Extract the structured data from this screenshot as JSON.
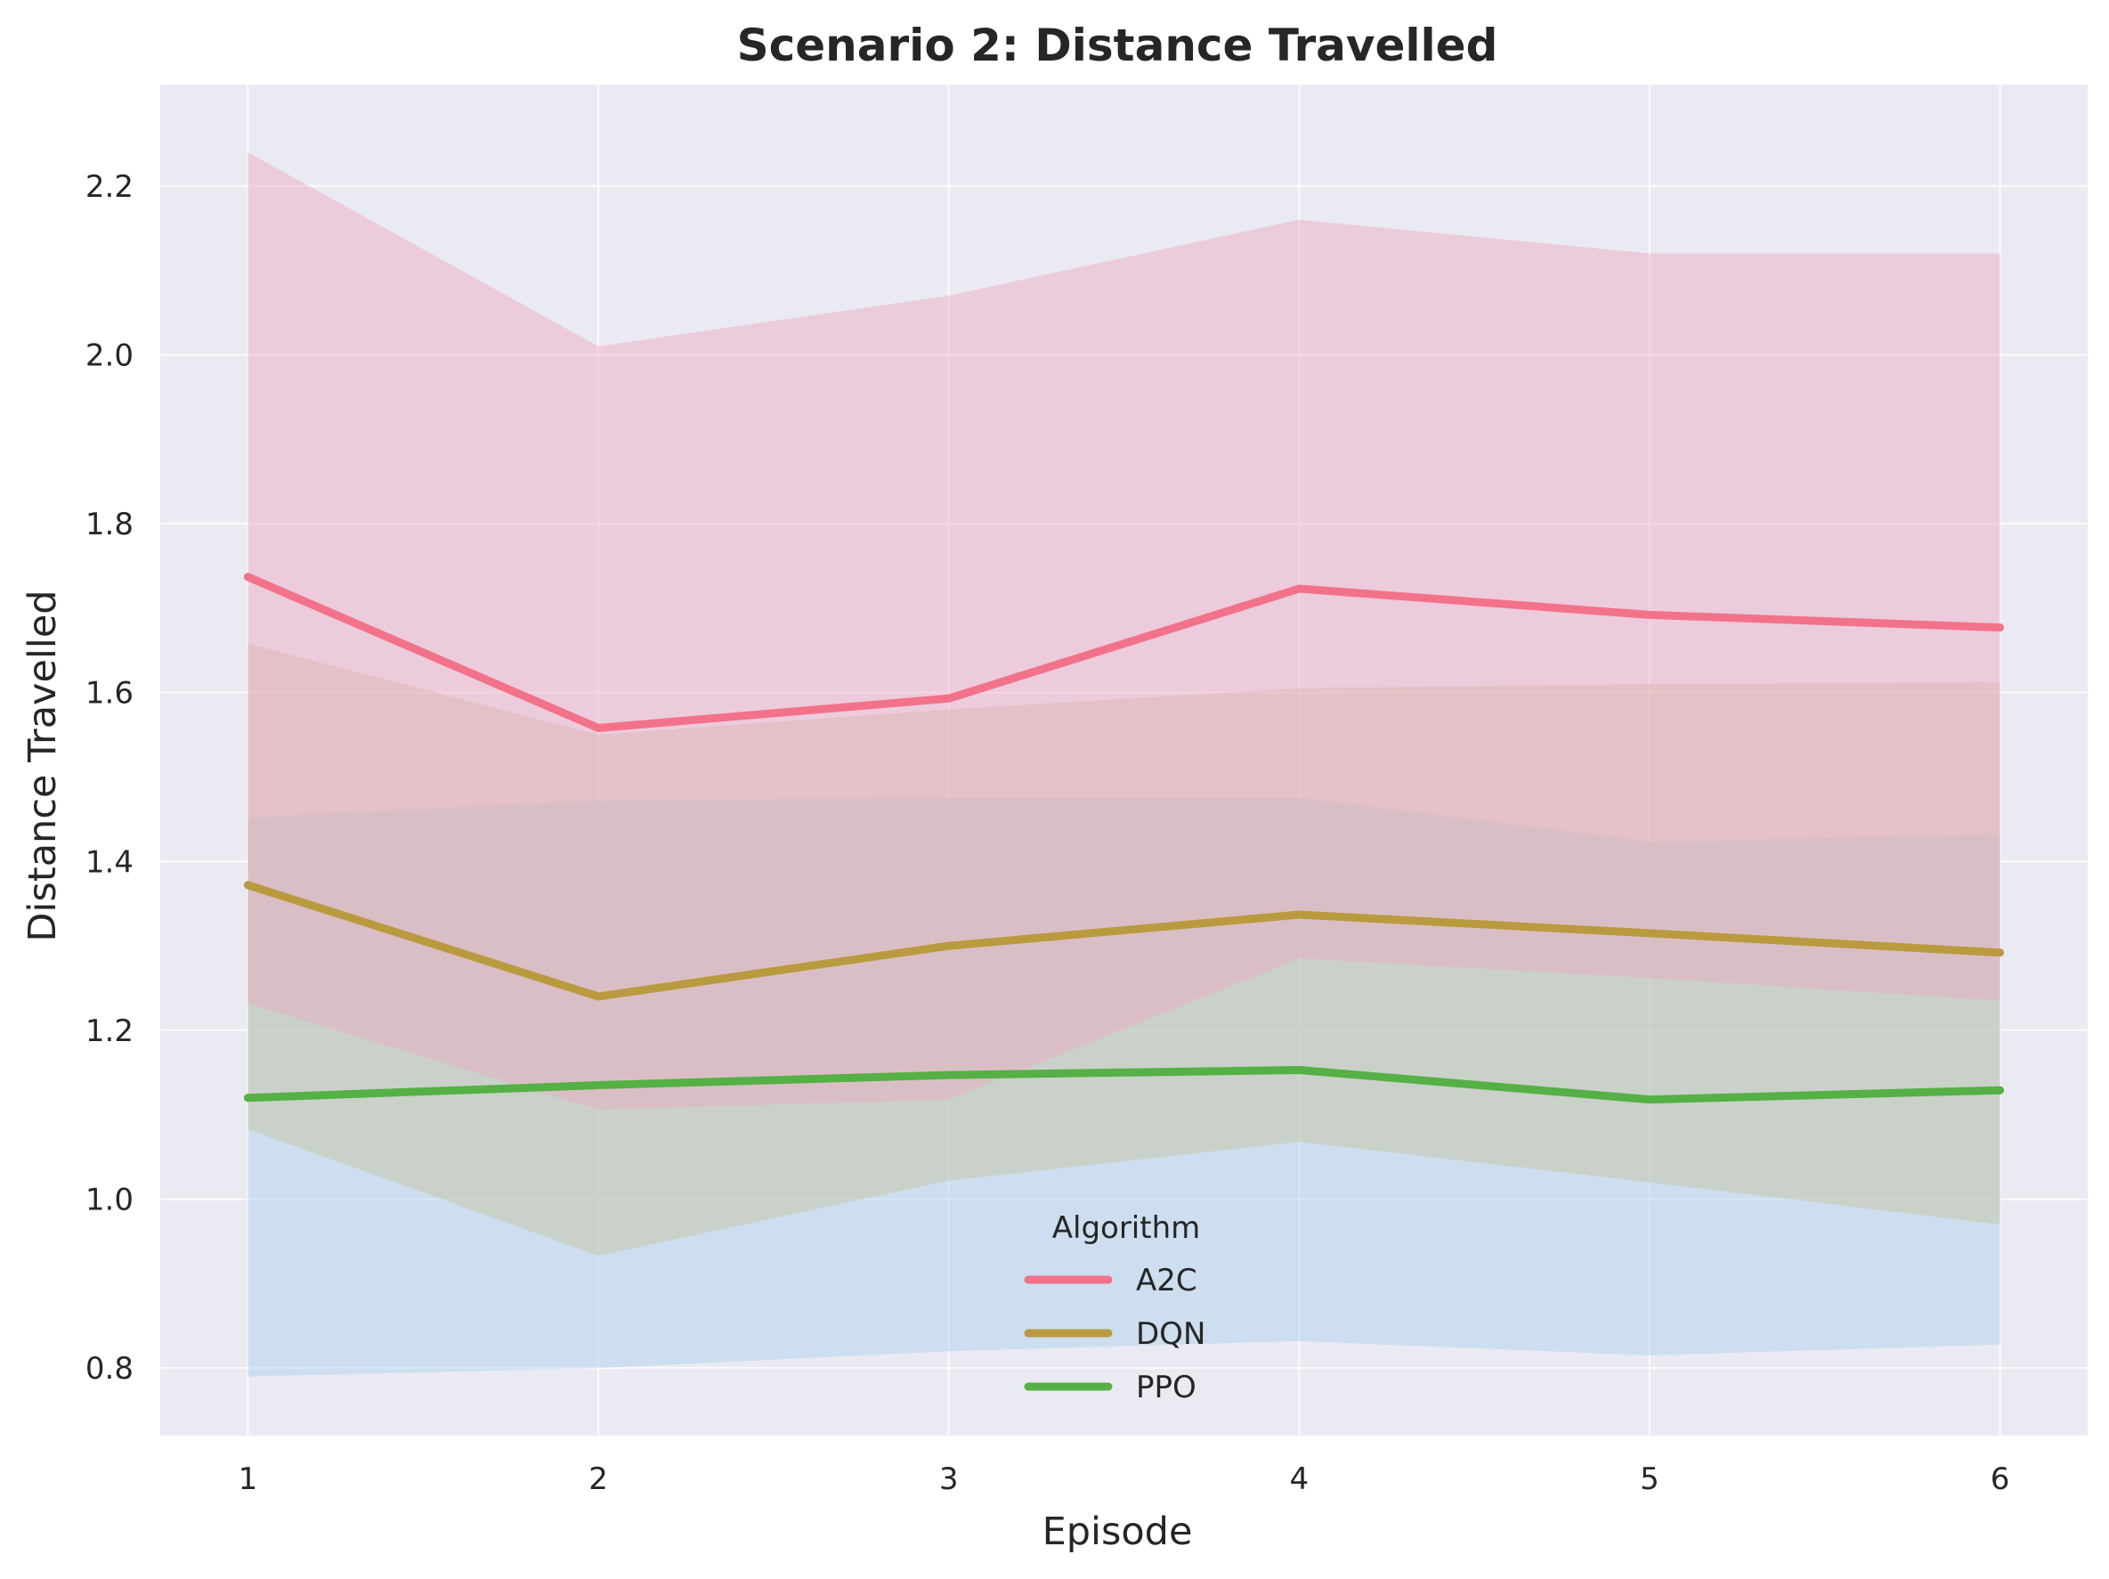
{
  "chart_data": {
    "type": "line",
    "title": "Scenario 2: Distance Travelled",
    "xlabel": "Episode",
    "ylabel": "Distance Travelled",
    "x": [
      1,
      2,
      3,
      4,
      5,
      6
    ],
    "xlim": [
      0.75,
      6.25
    ],
    "ylim": [
      0.72,
      2.32
    ],
    "yticks": [
      0.8,
      1.0,
      1.2,
      1.4,
      1.6,
      1.8,
      2.0,
      2.2
    ],
    "ytick_labels": [
      "0.8",
      "1.0",
      "1.2",
      "1.4",
      "1.6",
      "1.8",
      "2.0",
      "2.2"
    ],
    "xtick_labels": [
      "1",
      "2",
      "3",
      "4",
      "5",
      "6"
    ],
    "grid": true,
    "background": "#eaeaf2",
    "legend": {
      "title": "Algorithm",
      "placement": "lower-center"
    },
    "series": [
      {
        "name": "A2C",
        "color": "#f27289",
        "band_color": "#f0a6c0",
        "values": [
          1.737,
          1.558,
          1.593,
          1.723,
          1.692,
          1.677
        ],
        "upper": [
          2.24,
          2.01,
          2.07,
          2.16,
          2.12,
          2.12
        ],
        "lower": [
          1.232,
          1.106,
          1.118,
          1.285,
          1.262,
          1.235
        ]
      },
      {
        "name": "DQN",
        "color": "#ba9a3f",
        "band_color": "#c6c19b",
        "values": [
          1.372,
          1.24,
          1.3,
          1.337,
          1.315,
          1.292
        ],
        "upper": [
          1.658,
          1.55,
          1.58,
          1.605,
          1.61,
          1.612
        ],
        "lower": [
          1.083,
          0.933,
          1.022,
          1.068,
          1.02,
          0.97
        ]
      },
      {
        "name": "PPO",
        "color": "#55b045",
        "band_color": "#a8d0ea",
        "values": [
          1.12,
          1.135,
          1.147,
          1.153,
          1.118,
          1.129
        ],
        "upper": [
          1.452,
          1.472,
          1.475,
          1.475,
          1.423,
          1.432
        ],
        "lower": [
          0.79,
          0.8,
          0.82,
          0.832,
          0.815,
          0.828
        ]
      }
    ]
  }
}
